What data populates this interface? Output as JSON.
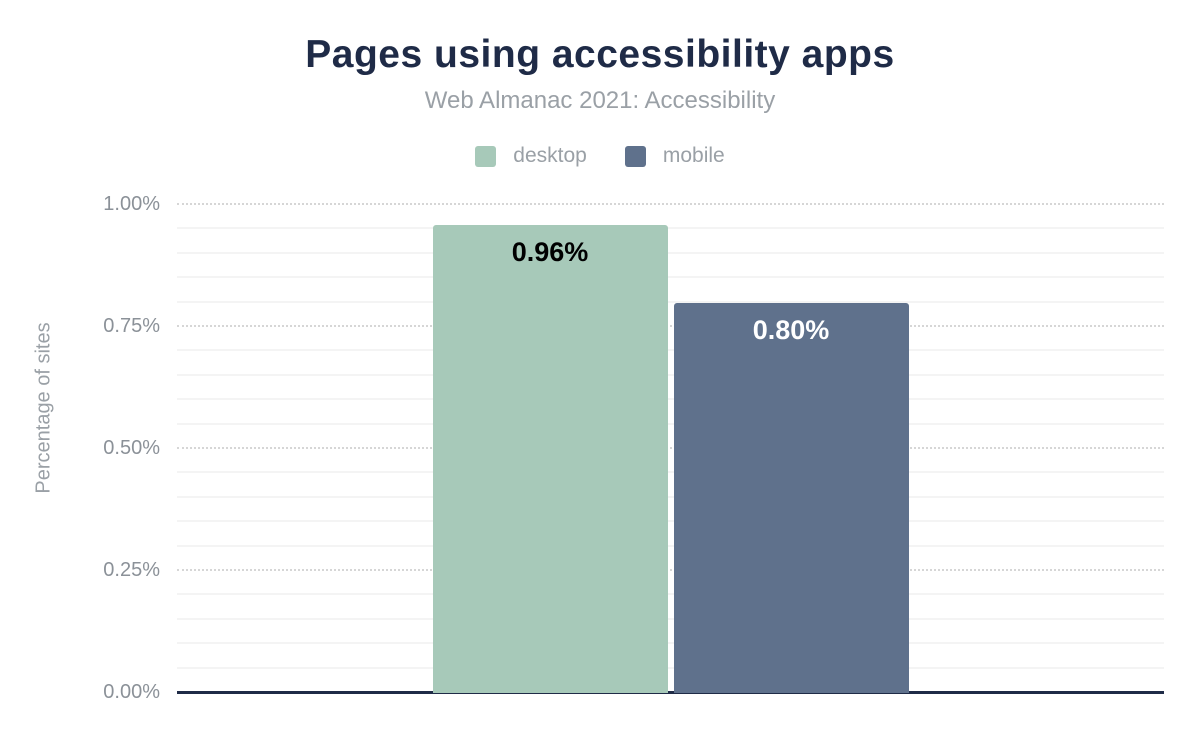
{
  "chart_data": {
    "type": "bar",
    "title": "Pages using accessibility apps",
    "subtitle": "Web Almanac 2021: Accessibility",
    "ylabel": "Percentage of sites",
    "ylim": [
      0,
      1.0
    ],
    "categories": [
      "desktop",
      "mobile"
    ],
    "series": [
      {
        "name": "desktop",
        "value": 0.96,
        "label": "0.96%",
        "color": "#a7c9b9",
        "label_color": "#000000"
      },
      {
        "name": "mobile",
        "value": 0.8,
        "label": "0.80%",
        "color": "#5f718c",
        "label_color": "#ffffff"
      }
    ],
    "yticks": [
      {
        "value": 0.0,
        "label": "0.00%"
      },
      {
        "value": 0.25,
        "label": "0.25%"
      },
      {
        "value": 0.5,
        "label": "0.50%"
      },
      {
        "value": 0.75,
        "label": "0.75%"
      },
      {
        "value": 1.0,
        "label": "1.00%"
      }
    ],
    "grid": {
      "minor_step": 0.05,
      "major_step": 0.25,
      "enabled": true
    },
    "legend_position": "top",
    "colors": {
      "title": "#1f2b47",
      "subtitle": "#9aa0a6",
      "axis_line": "#1f2b47",
      "tick_text": "#8b9198"
    }
  }
}
